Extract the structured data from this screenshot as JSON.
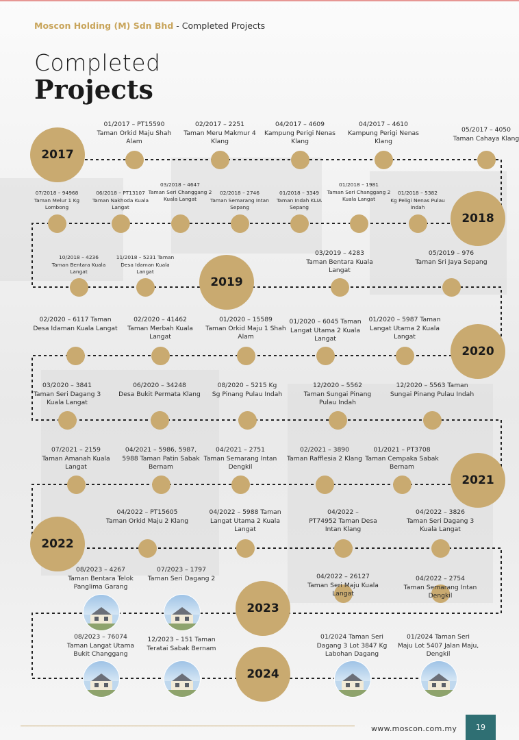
{
  "header": {
    "company": "Moscon Holding (M) Sdn Bhd",
    "separator": " - ",
    "section": "Completed Projects"
  },
  "title": {
    "line1": "Completed",
    "line2": "Projects"
  },
  "years": [
    "2017",
    "2018",
    "2019",
    "2020",
    "2021",
    "2022",
    "2023",
    "2024"
  ],
  "projects": [
    {
      "code": "01/2017 – PT15590",
      "name": "Taman Orkid Maju Shah Alam"
    },
    {
      "code": "02/2017 – 2251",
      "name": "Taman Meru Makmur 4 Klang"
    },
    {
      "code": "04/2017 – 4609",
      "name": "Kampung Perigi Nenas Klang"
    },
    {
      "code": "04/2017 – 4610",
      "name": "Kampung Perigi Nenas Klang"
    },
    {
      "code": "05/2017 – 4050",
      "name": "Taman Cahaya Klang"
    },
    {
      "code": "07/2018 – 94968",
      "name": "Taman Melur 1 Kg Lombong"
    },
    {
      "code": "06/2018 – PT13107",
      "name": "Taman Nakhoda Kuala Langat"
    },
    {
      "code": "03/2018 – 4647",
      "name": "Taman Seri Changgang 2 Kuala Langat"
    },
    {
      "code": "02/2018 – 2746",
      "name": "Taman Semarang Intan Sepang"
    },
    {
      "code": "01/2018 – 3349",
      "name": "Taman Indah KLIA Sepang"
    },
    {
      "code": "01/2018 – 1981",
      "name": "Taman Seri Changgang 2 Kuala Langat"
    },
    {
      "code": "01/2018 – 5382",
      "name": "Kg Peligi Nenas Pulau Indah"
    },
    {
      "code": "10/2018 – 4236",
      "name": "Taman Bentara Kuala Langat"
    },
    {
      "code": "11/2018 – 5231 Taman",
      "name": "Desa Idaman Kuala Langat"
    },
    {
      "code": "03/2019 – 4283",
      "name": "Taman Bentara Kuala Langat"
    },
    {
      "code": "05/2019 – 976",
      "name": "Taman Sri Jaya Sepang"
    },
    {
      "code": "02/2020 – 6117 Taman",
      "name": "Desa Idaman Kuala Langat"
    },
    {
      "code": "02/2020 – 41462",
      "name": "Taman Merbah Kuala Langat"
    },
    {
      "code": "01/2020 – 15589",
      "name": "Taman Orkid Maju 1 Shah Alam"
    },
    {
      "code": "01/2020 – 6045 Taman",
      "name": "Langat Utama 2 Kuala Langat"
    },
    {
      "code": "01/2020 – 5987 Taman",
      "name": "Langat Utama 2 Kuala Langat"
    },
    {
      "code": "03/2020 – 3841",
      "name": "Taman Seri Dagang 3 Kuala Langat"
    },
    {
      "code": "06/2020 – 34248",
      "name": "Desa Bukit Permata Klang"
    },
    {
      "code": "08/2020 – 5215 Kg",
      "name": "Sg Pinang Pulau Indah"
    },
    {
      "code": "12/2020 – 5562",
      "name": "Taman Sungai Pinang Pulau Indah"
    },
    {
      "code": "12/2020 – 5563 Taman",
      "name": "Sungai Pinang Pulau Indah"
    },
    {
      "code": "07/2021 – 2159",
      "name": "Taman Amanah Kuala Langat"
    },
    {
      "code": "04/2021 – 5986, 5987,",
      "name": "5988 Taman Patin Sabak Bernam"
    },
    {
      "code": "04/2021 – 2751",
      "name": "Taman Semarang Intan Dengkil"
    },
    {
      "code": "02/2021 – 3890",
      "name": "Taman Rafflesia 2 Klang"
    },
    {
      "code": "01/2021 – PT3708",
      "name": "Taman Cempaka Sabak Bernam"
    },
    {
      "code": "04/2022 – PT15605",
      "name": "Taman Orkid Maju 2 Klang"
    },
    {
      "code": "04/2022 – 5988 Taman",
      "name": "Langat Utama 2 Kuala Langat"
    },
    {
      "code": "04/2022 –",
      "name": "PT74952 Taman Desa Intan Klang"
    },
    {
      "code": "04/2022 – 3826",
      "name": "Taman Seri Dagang 3 Kuala Langat"
    },
    {
      "code": "08/2023 – 4267",
      "name": "Taman Bentara Telok Panglima Garang"
    },
    {
      "code": "07/2023 – 1797",
      "name": "Taman Seri Dagang 2"
    },
    {
      "code": "04/2022 – 26127",
      "name": "Taman Seri Maju Kuala Langat"
    },
    {
      "code": "04/2022 – 2754",
      "name": "Taman Semarang Intan Dengkil"
    },
    {
      "code": "08/2023 – 76074",
      "name": "Taman Langat Utama Bukit Changgang"
    },
    {
      "code": "12/2023 – 151 Taman",
      "name": "Teratai Sabak Bernam"
    },
    {
      "code": "01/2024 Taman Seri",
      "name": "Dagang 3 Lot 3847 Kg Labohan Dagang"
    },
    {
      "code": "01/2024 Taman Seri",
      "name": "Maju Lot 5407 Jalan Maju, Dengkil"
    }
  ],
  "icons": {
    "house_photo": "house-photo"
  },
  "colors": {
    "gold": "#c9aa70",
    "teal": "#2f6f73"
  },
  "footer": {
    "url": "www.moscon.com.my",
    "page": "19"
  }
}
